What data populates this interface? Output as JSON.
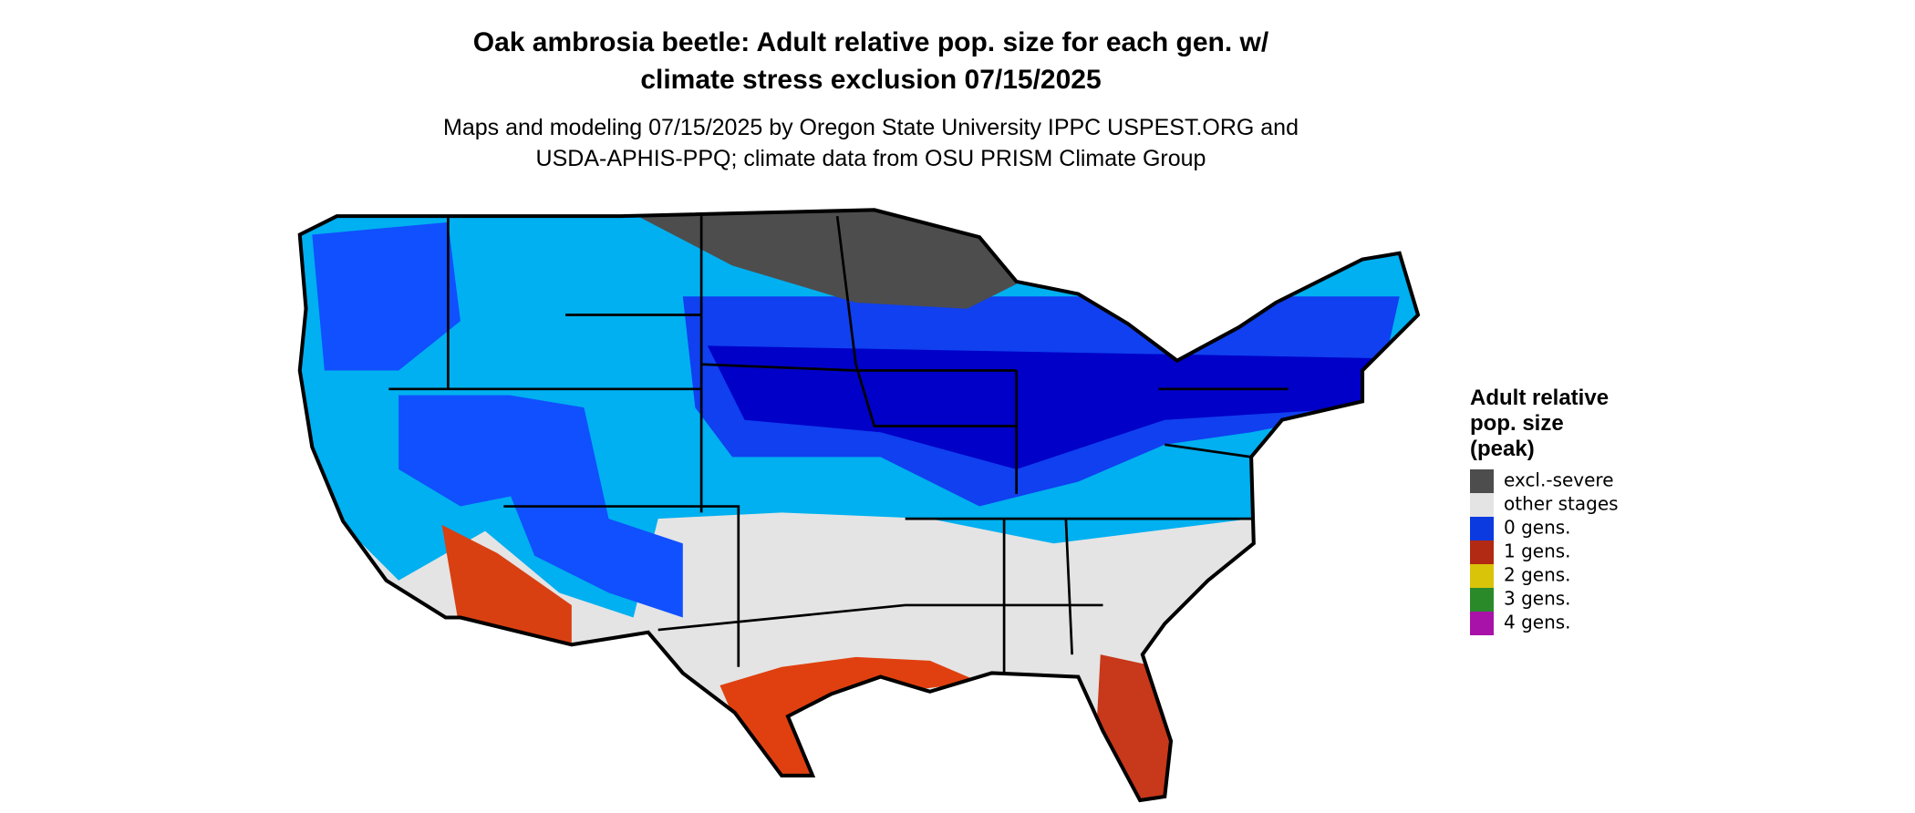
{
  "title": {
    "line1": "Oak ambrosia beetle: Adult relative pop. size for each gen. w/",
    "line2": "climate stress exclusion 07/15/2025"
  },
  "subtitle": {
    "line1": "Maps and modeling 07/15/2025 by Oregon State University IPPC USPEST.ORG and",
    "line2": "USDA-APHIS-PPQ; climate data from OSU PRISM Climate Group"
  },
  "legend": {
    "title": [
      "Adult relative",
      "pop. size",
      "(peak)"
    ],
    "items": [
      {
        "label": "excl.-severe",
        "color": "#4d4d4d"
      },
      {
        "label": "other stages",
        "color": "#e4e4e4"
      },
      {
        "label": "0 gens.",
        "color": "#0a3ae0"
      },
      {
        "label": "1 gens.",
        "color": "#b22a14"
      },
      {
        "label": "2 gens.",
        "color": "#d9c40a"
      },
      {
        "label": "3 gens.",
        "color": "#2a8a2a"
      },
      {
        "label": "4 gens.",
        "color": "#a812a8"
      }
    ]
  }
}
